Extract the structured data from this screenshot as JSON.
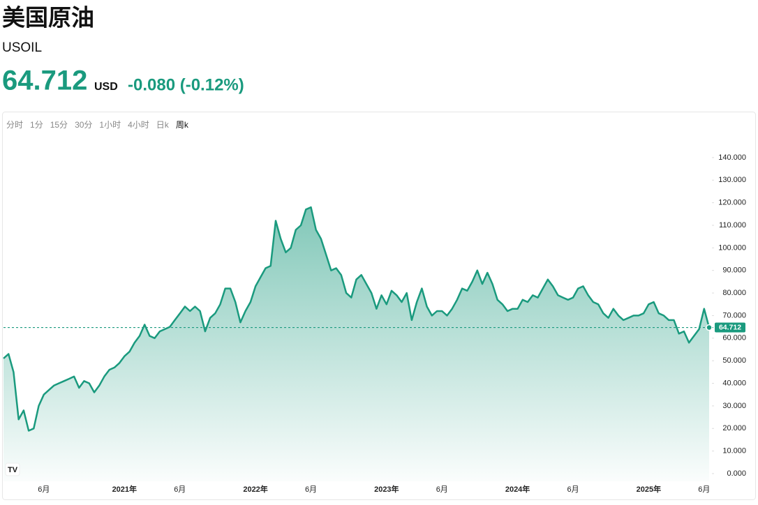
{
  "header": {
    "title": "美国原油",
    "symbol": "USOIL",
    "price": "64.712",
    "currency": "USD",
    "change": "-0.080 (-0.12%)"
  },
  "tabs": [
    "分时",
    "1分",
    "15分",
    "30分",
    "1小时",
    "4小时",
    "日k",
    "周k"
  ],
  "chart_data": {
    "type": "area",
    "color": "#1a9a7e",
    "categories": [
      null,
      null,
      null,
      null,
      null,
      null,
      null,
      null,
      "6月",
      null,
      null,
      null,
      null,
      null,
      null,
      null,
      null,
      null,
      null,
      null,
      null,
      null,
      null,
      null,
      "2021年",
      null,
      null,
      null,
      null,
      null,
      null,
      null,
      null,
      null,
      null,
      "6月",
      null,
      null,
      null,
      null,
      null,
      null,
      null,
      null,
      null,
      null,
      null,
      null,
      null,
      null,
      "2022年",
      null,
      null,
      null,
      null,
      null,
      null,
      null,
      null,
      null,
      null,
      "6月",
      null,
      null,
      null,
      null,
      null,
      null,
      null,
      null,
      null,
      null,
      null,
      null,
      null,
      null,
      "2023年",
      null,
      null,
      null,
      null,
      null,
      null,
      null,
      null,
      null,
      null,
      "6月",
      null,
      null,
      null,
      null,
      null,
      null,
      null,
      null,
      null,
      null,
      null,
      null,
      null,
      null,
      "2024年",
      null,
      null,
      null,
      null,
      null,
      null,
      null,
      null,
      null,
      null,
      "6月",
      null,
      null,
      null,
      null,
      null,
      null,
      null,
      null,
      null,
      null,
      null,
      null,
      null,
      null,
      "2025年",
      null,
      null,
      null,
      null,
      null,
      null,
      null,
      null,
      null,
      null,
      "6月",
      null
    ],
    "values": [
      51,
      53,
      45,
      24,
      28,
      19,
      20,
      30,
      35,
      37,
      39,
      40,
      41,
      42,
      43,
      38,
      41,
      40,
      36,
      39,
      43,
      46,
      47,
      49,
      52,
      54,
      58,
      61,
      66,
      61,
      60,
      63,
      64,
      65,
      68,
      71,
      74,
      72,
      74,
      72,
      63,
      69,
      71,
      75,
      82,
      82,
      76,
      67,
      72,
      76,
      83,
      87,
      91,
      92,
      112,
      104,
      98,
      100,
      108,
      110,
      117,
      118,
      108,
      104,
      97,
      90,
      91,
      88,
      80,
      78,
      86,
      88,
      84,
      80,
      73,
      79,
      75,
      81,
      79,
      76,
      80,
      68,
      76,
      82,
      74,
      70,
      72,
      72,
      70,
      73,
      77,
      82,
      81,
      85,
      90,
      84,
      89,
      84,
      77,
      75,
      72,
      73,
      73,
      77,
      76,
      79,
      78,
      82,
      86,
      83,
      79,
      78,
      77,
      78,
      82,
      83,
      79,
      76,
      75,
      71,
      69,
      73,
      70,
      68,
      69,
      70,
      70,
      71,
      75,
      76,
      71,
      70,
      68,
      68,
      62,
      63,
      58,
      61,
      64,
      73,
      64.712
    ],
    "ylim": [
      -3.4,
      148
    ],
    "yticks": [
      {
        "value": 0,
        "label": "0.000"
      },
      {
        "value": 10,
        "label": "10.000"
      },
      {
        "value": 20,
        "label": "20.000"
      },
      {
        "value": 30,
        "label": "30.000"
      },
      {
        "value": 40,
        "label": "40.000"
      },
      {
        "value": 50,
        "label": "50.000"
      },
      {
        "value": 60,
        "label": "60.000"
      },
      {
        "value": 70,
        "label": "70.000"
      },
      {
        "value": 80,
        "label": "80.000"
      },
      {
        "value": 90,
        "label": "90.000"
      },
      {
        "value": 100,
        "label": "100.000"
      },
      {
        "value": 110,
        "label": "110.000"
      },
      {
        "value": 120,
        "label": "120.000"
      },
      {
        "value": 130,
        "label": "130.000"
      },
      {
        "value": 140,
        "label": "140.000"
      }
    ]
  }
}
